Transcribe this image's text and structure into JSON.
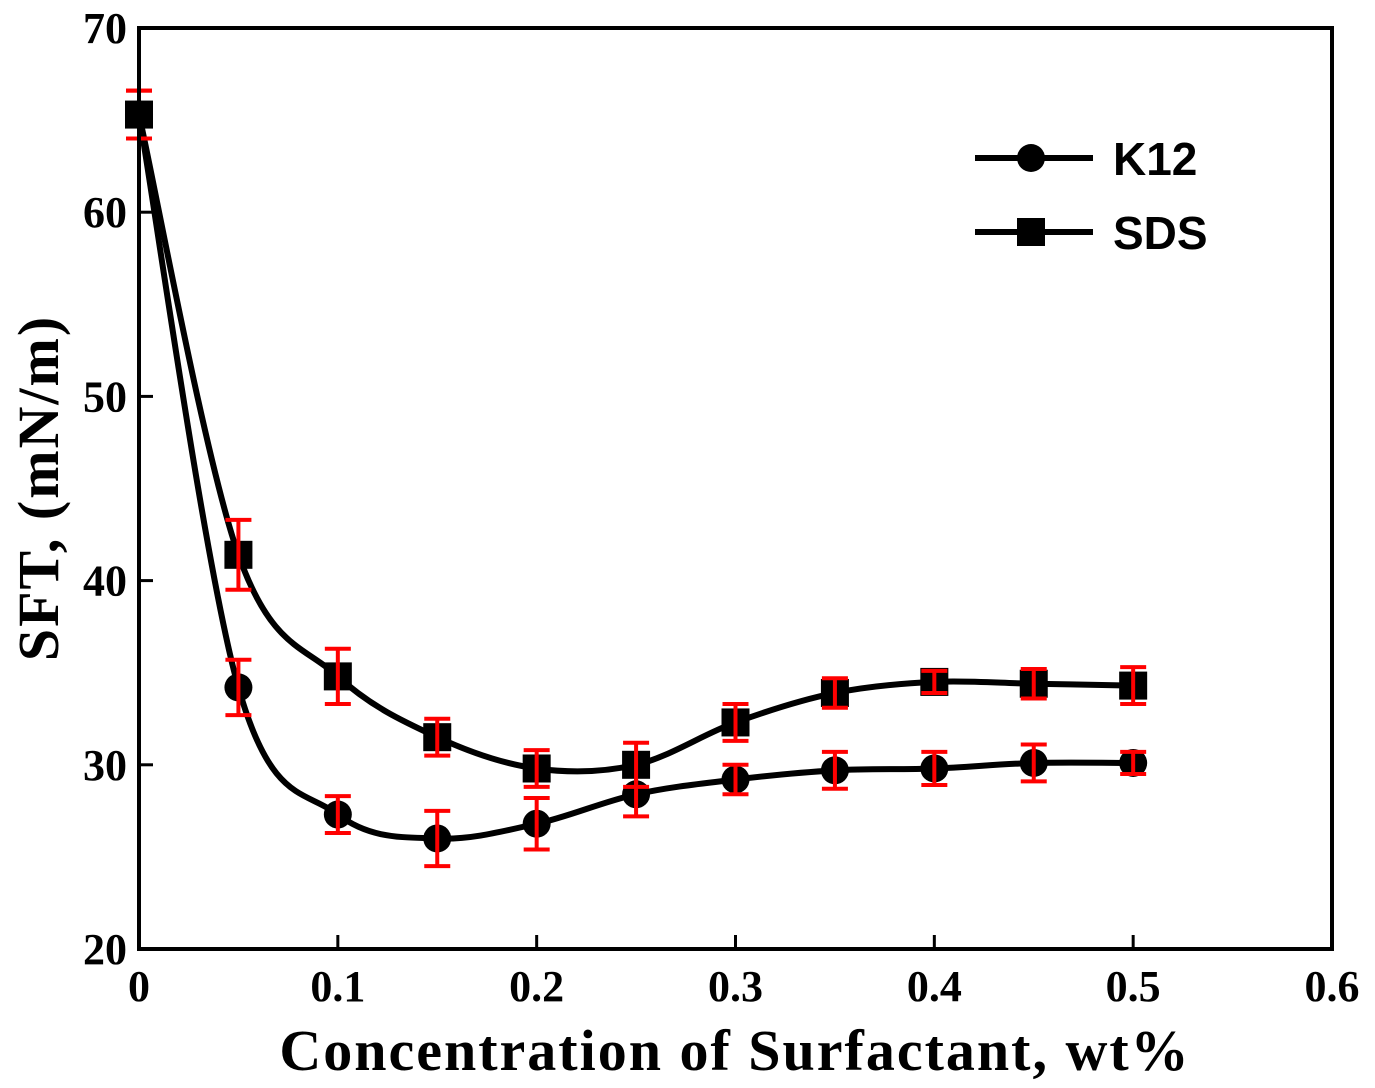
{
  "chart_data": {
    "type": "line",
    "title": "",
    "xlabel": "Concentration of Surfactant, wt%",
    "ylabel": "SFT, (mN/m)",
    "xlim": [
      0,
      0.6
    ],
    "ylim": [
      20,
      70
    ],
    "xticks": [
      0,
      0.1,
      0.2,
      0.3,
      0.4,
      0.5,
      0.6
    ],
    "xtick_labels": [
      "0",
      "0.1",
      "0.2",
      "0.3",
      "0.4",
      "0.5",
      "0.6"
    ],
    "yticks": [
      20,
      30,
      40,
      50,
      60,
      70
    ],
    "ytick_labels": [
      "20",
      "30",
      "40",
      "50",
      "60",
      "70"
    ],
    "grid": false,
    "legend_position": "top-right",
    "line_color": "#000000",
    "errorbar_color": "#ff0000",
    "series": [
      {
        "name": "K12",
        "marker": "circle",
        "x": [
          0,
          0.05,
          0.1,
          0.15,
          0.2,
          0.25,
          0.3,
          0.35,
          0.4,
          0.45,
          0.5
        ],
        "values": [
          65.3,
          34.2,
          27.3,
          26.0,
          26.8,
          28.4,
          29.2,
          29.7,
          29.8,
          30.1,
          30.1
        ],
        "errors": [
          1.3,
          1.5,
          1.0,
          1.5,
          1.4,
          1.2,
          0.8,
          1.0,
          0.9,
          1.0,
          0.6
        ]
      },
      {
        "name": "SDS",
        "marker": "square",
        "x": [
          0,
          0.05,
          0.1,
          0.15,
          0.2,
          0.25,
          0.3,
          0.35,
          0.4,
          0.45,
          0.5
        ],
        "values": [
          65.3,
          41.4,
          34.8,
          31.5,
          29.8,
          30.0,
          32.3,
          33.9,
          34.5,
          34.4,
          34.3
        ],
        "errors": [
          1.3,
          1.9,
          1.5,
          1.0,
          1.0,
          1.2,
          1.0,
          0.8,
          0.6,
          0.8,
          1.0
        ]
      }
    ]
  }
}
